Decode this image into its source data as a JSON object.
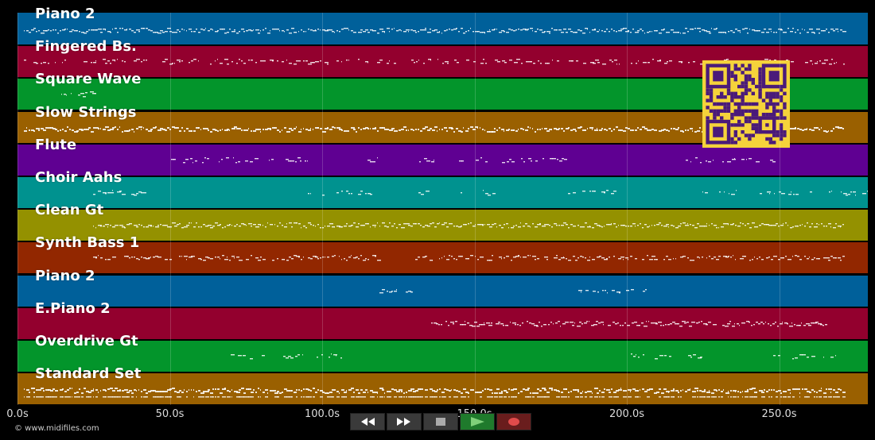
{
  "tracks": [
    {
      "name": "Piano 2",
      "color": "#00609a"
    },
    {
      "name": "Fingered Bs.",
      "color": "#93002e"
    },
    {
      "name": "Square Wave",
      "color": "#03952b"
    },
    {
      "name": "Slow Strings",
      "color": "#9a6000"
    },
    {
      "name": "Flute",
      "color": "#5f0092"
    },
    {
      "name": "Choir Aahs",
      "color": "#00928f"
    },
    {
      "name": "Clean Gt",
      "color": "#949100"
    },
    {
      "name": "Synth Bass 1",
      "color": "#922700"
    },
    {
      "name": "Piano 2",
      "color": "#00609a"
    },
    {
      "name": "E.Piano 2",
      "color": "#93002e"
    },
    {
      "name": "Overdrive Gt",
      "color": "#03952b"
    },
    {
      "name": "Standard Set",
      "color": "#9a6000"
    }
  ],
  "timeline": {
    "ticks": [
      "0.0s",
      "50.0s",
      "100.0s",
      "150.0s",
      "200.0s",
      "250.0s"
    ]
  },
  "copyright": "© www.midifiles.com",
  "controls": {
    "rewind": "rewind-icon",
    "fast_forward": "fast-forward-icon",
    "stop": "stop-icon",
    "play": "play-icon",
    "record": "record-icon"
  },
  "qr_color": "#f5d33b"
}
